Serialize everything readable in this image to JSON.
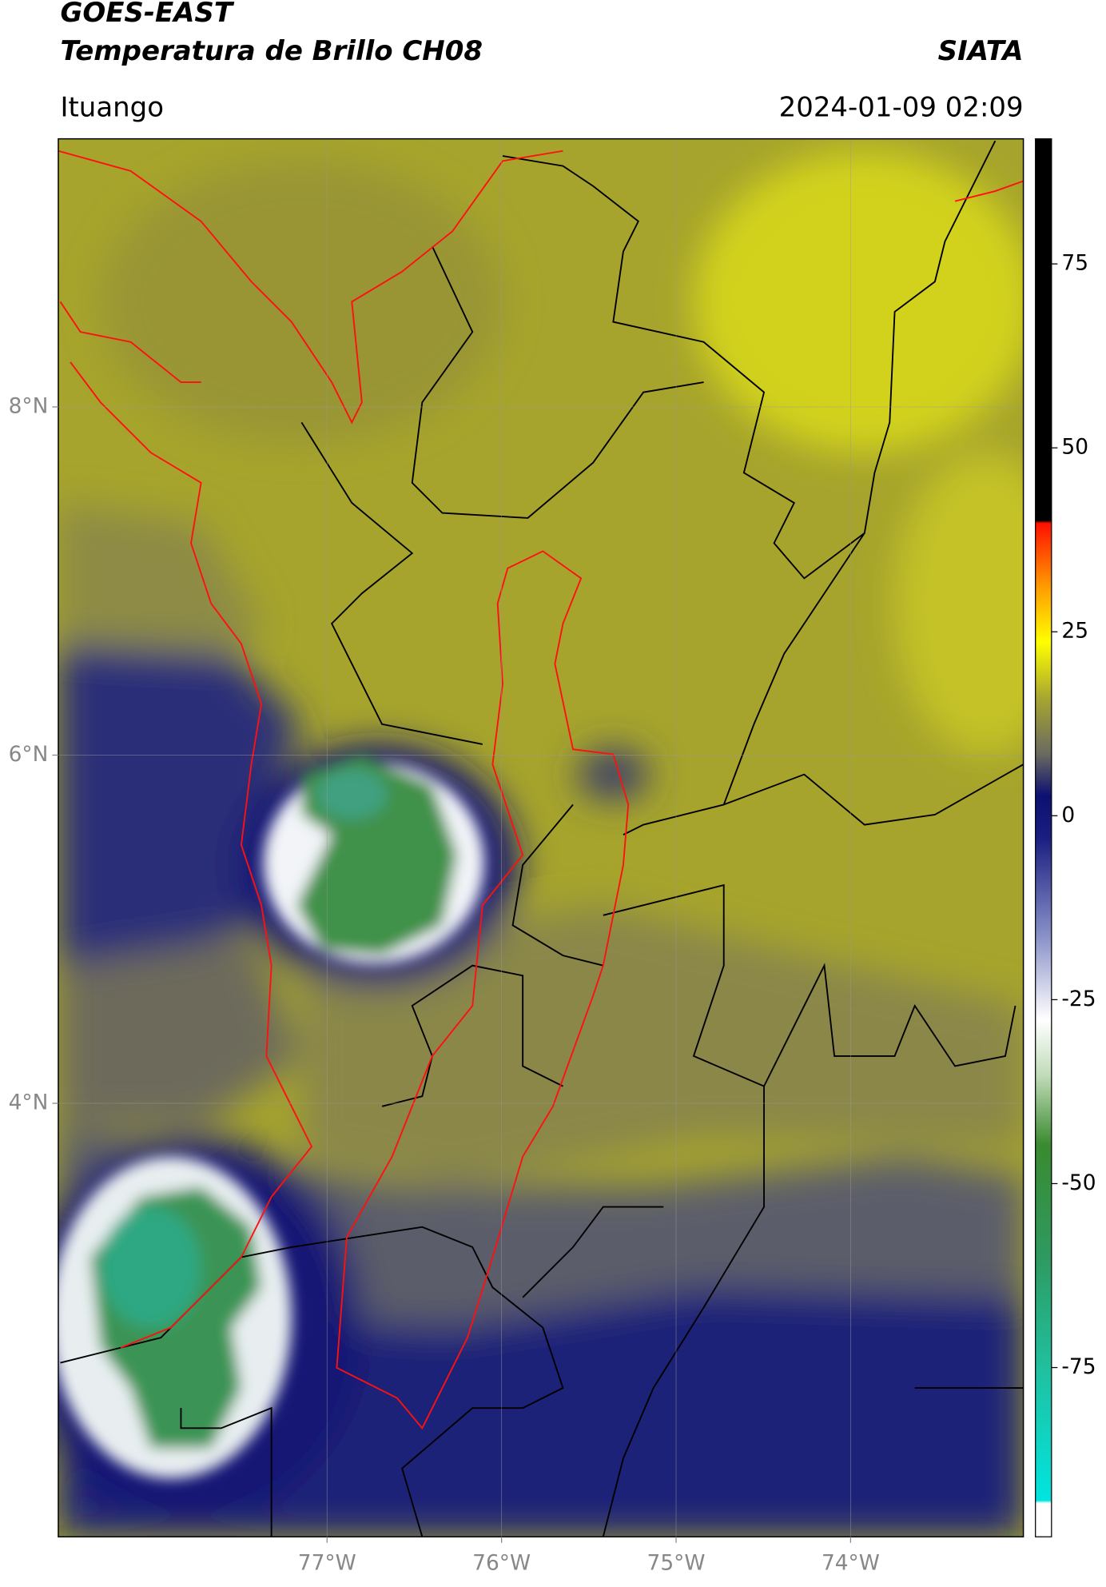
{
  "chart_data": {
    "type": "map",
    "title": "GOES-EAST",
    "subtitle": "Temperatura de Brillo CH08",
    "source": "SIATA",
    "location": "Ituango",
    "date": "2024-01-09 02:09",
    "xlim": [
      -78.54,
      -73.01
    ],
    "ylim": [
      1.51,
      9.54
    ],
    "xticks": [
      {
        "value": -77,
        "label": "77°W"
      },
      {
        "value": -76,
        "label": "76°W"
      },
      {
        "value": -75,
        "label": "75°W"
      },
      {
        "value": -74,
        "label": "74°W"
      }
    ],
    "yticks": [
      {
        "value": 8,
        "label": "8°N"
      },
      {
        "value": 6,
        "label": "6°N"
      },
      {
        "value": 4,
        "label": "4°N"
      }
    ],
    "grid": true,
    "colorbar": {
      "lim": [
        -98,
        92
      ],
      "ticks": [
        75,
        50,
        25,
        0,
        -25,
        -50,
        -75
      ]
    }
  }
}
